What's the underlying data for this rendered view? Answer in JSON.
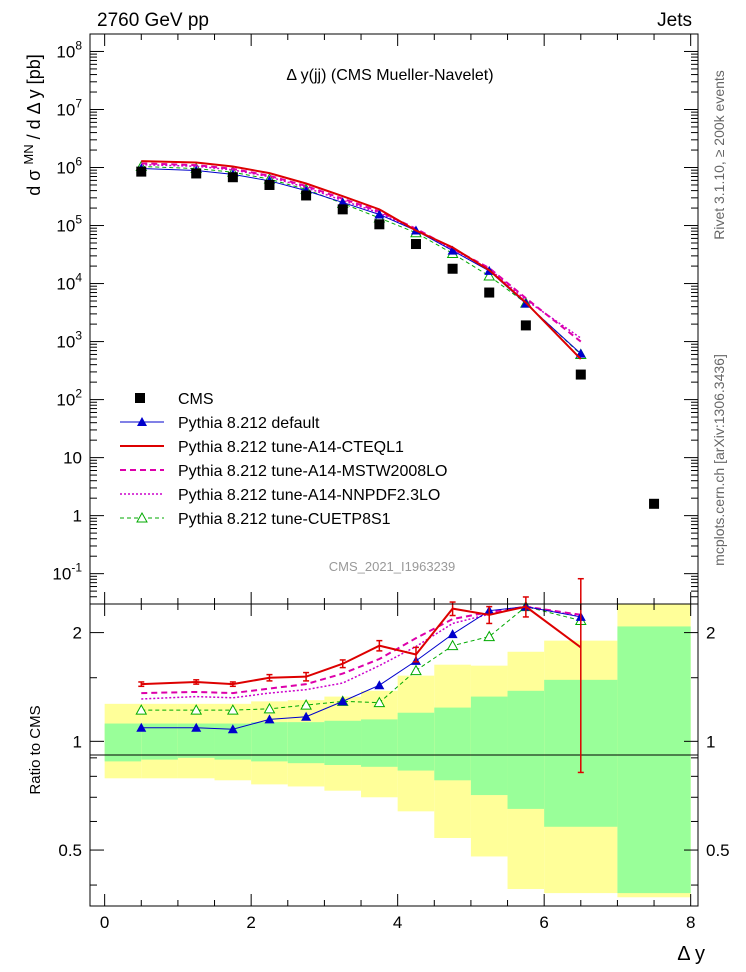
{
  "header": {
    "left": "2760 GeV pp",
    "right": "Jets"
  },
  "plot_title": "Δ y(jj) (CMS Mueller-Navelet)",
  "ylabel_main": "d σ^MN / d Δ y [pb]",
  "ylabel_ratio": "Ratio to CMS",
  "xlabel": "Δ y",
  "side_text_top": "Rivet 3.1.10, ≥ 200k events",
  "side_text_bottom": "mcplots.cern.ch [arXiv:1306.3436]",
  "watermark": "CMS_2021_I1963239",
  "colors": {
    "cms": "#000000",
    "default": "#0000cc",
    "a14_cteq": "#dd0000",
    "a14_mstw": "#dd00aa",
    "a14_nnpdf": "#cc00cc",
    "cuetp8s1": "#00aa00",
    "band_inner": "#99ff99",
    "band_outer": "#ffff99"
  },
  "chart_data": [
    {
      "type": "scatter",
      "panel": "main",
      "yscale": "log",
      "xlim": [
        -0.2,
        8.1
      ],
      "ylim": [
        0.03,
        200000000
      ],
      "y_ticks": [
        "10^8",
        "10^7",
        "10^6",
        "10^5",
        "10^4",
        "10^3",
        "10^2",
        "10",
        "1",
        "10^-1"
      ],
      "legend_placement": "bottom-left",
      "series": [
        {
          "name": "CMS",
          "style": "square",
          "x": [
            0.5,
            1.25,
            1.75,
            2.25,
            2.75,
            3.25,
            3.75,
            4.25,
            4.75,
            5.25,
            5.75,
            6.5,
            7.5
          ],
          "y": [
            850000,
            790000,
            680000,
            500000,
            330000,
            190000,
            105000,
            48000,
            18000,
            7000,
            1900,
            270,
            1.6
          ]
        },
        {
          "name": "Pythia 8.212 default",
          "style": "line-triangle",
          "x": [
            0.5,
            1.25,
            1.75,
            2.25,
            2.75,
            3.25,
            3.75,
            4.25,
            4.75,
            5.25,
            5.75,
            6.5
          ],
          "y": [
            960000,
            890000,
            760000,
            590000,
            400000,
            250000,
            155000,
            82000,
            37000,
            16500,
            4500,
            620
          ]
        },
        {
          "name": "Pythia 8.212 tune-A14-CTEQL1",
          "style": "solid",
          "x": [
            0.5,
            1.25,
            1.75,
            2.25,
            2.75,
            3.25,
            3.75,
            4.25,
            4.75,
            5.25,
            5.75,
            6.5
          ],
          "y": [
            1290000,
            1220000,
            1040000,
            800000,
            530000,
            320000,
            190000,
            82000,
            42000,
            17000,
            4700,
            500
          ]
        },
        {
          "name": "Pythia 8.212 tune-A14-MSTW2008LO",
          "style": "dashed",
          "x": [
            0.5,
            1.25,
            1.75,
            2.25,
            2.75,
            3.25,
            3.75,
            4.25,
            4.75,
            5.25,
            5.75,
            6.5
          ],
          "y": [
            1180000,
            1100000,
            950000,
            720000,
            480000,
            290000,
            175000,
            88000,
            40000,
            18500,
            5600,
            1000
          ]
        },
        {
          "name": "Pythia 8.212 tune-A14-NNPDF2.3LO",
          "style": "dotted",
          "x": [
            0.5,
            1.25,
            1.75,
            2.25,
            2.75,
            3.25,
            3.75,
            4.25,
            4.75,
            5.25,
            5.75,
            6.5
          ],
          "y": [
            1120000,
            1050000,
            910000,
            690000,
            450000,
            270000,
            165000,
            84000,
            39000,
            18000,
            5200,
            1150
          ]
        },
        {
          "name": "Pythia 8.212 tune-CUETP8S1",
          "style": "dashed-open-triangle",
          "x": [
            0.5,
            1.25,
            1.75,
            2.25,
            2.75,
            3.25,
            3.75,
            4.25,
            4.75,
            5.25,
            5.75,
            6.5
          ],
          "y": [
            1040000,
            960000,
            830000,
            630000,
            420000,
            240000,
            135000,
            75000,
            33000,
            13500,
            4600,
            600
          ]
        }
      ]
    },
    {
      "type": "line",
      "panel": "ratio",
      "yscale": "log",
      "ylim": [
        0.35,
        2.4
      ],
      "xlim": [
        -0.2,
        8.1
      ],
      "x_ticks": [
        "0",
        "2",
        "4",
        "6",
        "8"
      ],
      "y_ticks": [
        "0.5",
        "1",
        "2"
      ],
      "bands": {
        "edges": [
          0,
          0.5,
          1.0,
          1.5,
          2.0,
          2.5,
          3.0,
          3.5,
          4.0,
          4.5,
          5.0,
          5.5,
          6.0,
          7.0,
          8.0
        ],
        "inner_lo": [
          0.88,
          0.89,
          0.9,
          0.89,
          0.88,
          0.87,
          0.86,
          0.85,
          0.83,
          0.78,
          0.71,
          0.65,
          0.58,
          0.38
        ],
        "inner_hi": [
          1.12,
          1.12,
          1.12,
          1.12,
          1.13,
          1.13,
          1.14,
          1.15,
          1.2,
          1.24,
          1.33,
          1.38,
          1.48,
          2.08
        ],
        "outer_lo": [
          0.79,
          0.79,
          0.79,
          0.78,
          0.76,
          0.75,
          0.73,
          0.7,
          0.64,
          0.54,
          0.48,
          0.39,
          0.38,
          0.37
        ],
        "outer_hi": [
          1.27,
          1.27,
          1.27,
          1.27,
          1.29,
          1.3,
          1.33,
          1.38,
          1.52,
          1.63,
          1.62,
          1.77,
          1.9,
          2.4
        ]
      },
      "series": [
        {
          "name": "Pythia 8.212 default",
          "x": [
            0.5,
            1.25,
            1.75,
            2.25,
            2.75,
            3.25,
            3.75,
            4.25,
            4.75,
            5.25,
            5.75,
            6.5
          ],
          "y": [
            1.09,
            1.09,
            1.08,
            1.15,
            1.17,
            1.29,
            1.43,
            1.67,
            1.98,
            2.3,
            2.36,
            2.21
          ]
        },
        {
          "name": "Pythia 8.212 tune-A14-CTEQL1",
          "x": [
            0.5,
            1.25,
            1.75,
            2.25,
            2.75,
            3.25,
            3.75,
            4.25,
            4.75,
            5.25,
            5.75,
            6.5
          ],
          "y": [
            1.44,
            1.46,
            1.44,
            1.5,
            1.51,
            1.64,
            1.84,
            1.74,
            2.33,
            2.24,
            2.36,
            1.82
          ],
          "err": [
            0.02,
            0.02,
            0.02,
            0.03,
            0.04,
            0.04,
            0.06,
            0.08,
            0.1,
            0.12,
            0.15,
            1.0
          ]
        },
        {
          "name": "Pythia 8.212 tune-A14-MSTW2008LO",
          "x": [
            0.5,
            1.25,
            1.75,
            2.25,
            2.75,
            3.25,
            3.75,
            4.25,
            4.75,
            5.25,
            5.75,
            6.5
          ],
          "y": [
            1.36,
            1.37,
            1.36,
            1.4,
            1.44,
            1.54,
            1.69,
            1.93,
            2.18,
            2.28,
            2.36,
            2.24
          ]
        },
        {
          "name": "Pythia 8.212 tune-A14-NNPDF2.3LO",
          "x": [
            0.5,
            1.25,
            1.75,
            2.25,
            2.75,
            3.25,
            3.75,
            4.25,
            4.75,
            5.25,
            5.75,
            6.5
          ],
          "y": [
            1.31,
            1.33,
            1.32,
            1.36,
            1.39,
            1.45,
            1.62,
            1.83,
            2.12,
            2.25,
            2.36,
            2.22
          ]
        },
        {
          "name": "Pythia 8.212 tune-CUETP8S1",
          "x": [
            0.5,
            1.25,
            1.75,
            2.25,
            2.75,
            3.25,
            3.75,
            4.25,
            4.75,
            5.25,
            5.75,
            6.5
          ],
          "y": [
            1.22,
            1.22,
            1.22,
            1.23,
            1.26,
            1.29,
            1.28,
            1.57,
            1.84,
            1.95,
            2.36,
            2.16
          ]
        }
      ]
    }
  ]
}
